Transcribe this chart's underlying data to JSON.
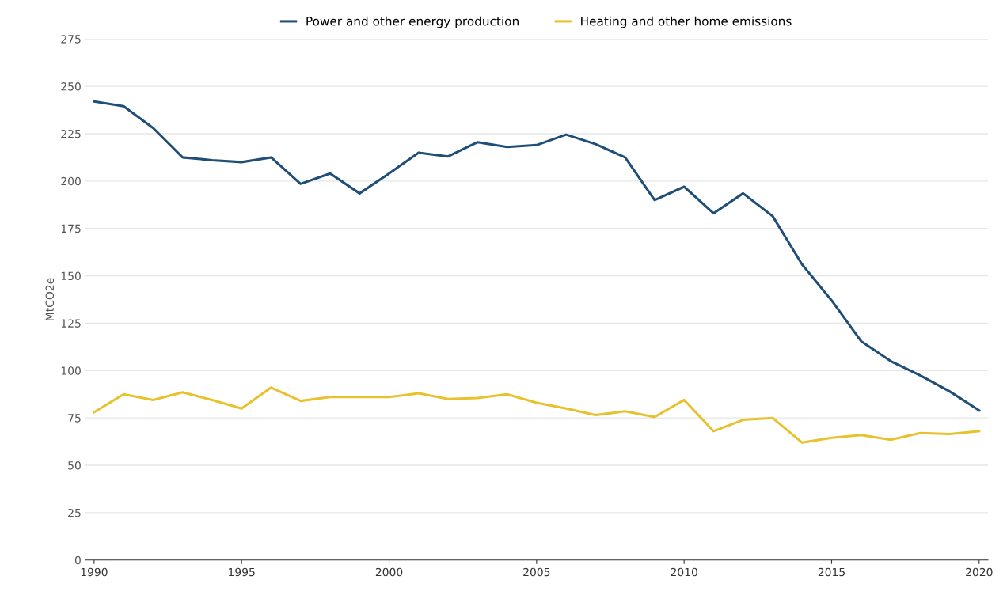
{
  "chart_data": {
    "type": "line",
    "ylabel": "MtCO2e",
    "x": [
      1990,
      1991,
      1992,
      1993,
      1994,
      1995,
      1996,
      1997,
      1998,
      1999,
      2000,
      2001,
      2002,
      2003,
      2004,
      2005,
      2006,
      2007,
      2008,
      2009,
      2010,
      2011,
      2012,
      2013,
      2014,
      2015,
      2016,
      2017,
      2018,
      2019,
      2020
    ],
    "series": [
      {
        "name": "Power and other energy production",
        "color": "#1f4e79",
        "values": [
          242,
          239.5,
          228,
          212.5,
          211,
          210,
          212.5,
          198.5,
          204,
          193.5,
          204,
          215,
          213,
          220.5,
          218,
          219,
          224.5,
          219.5,
          212.5,
          190,
          197,
          183,
          193.5,
          181.5,
          156,
          137,
          115.5,
          105,
          97.5,
          89,
          79
        ]
      },
      {
        "name": "Heating and other home emissions",
        "color": "#e8c22e",
        "values": [
          78,
          87.5,
          84.5,
          88.5,
          84.5,
          80,
          91,
          84,
          86,
          86,
          86,
          88,
          85,
          85.5,
          87.5,
          83,
          80,
          76.5,
          78.5,
          75.5,
          84.5,
          68,
          74,
          75,
          62,
          64.5,
          66,
          63.5,
          67,
          66.5,
          68
        ]
      }
    ],
    "xlim": [
      1989.7,
      2020.3
    ],
    "xticks": [
      1990,
      1995,
      2000,
      2005,
      2010,
      2015,
      2020
    ],
    "ylim": [
      0,
      275
    ],
    "yticks": [
      0,
      25,
      50,
      75,
      100,
      125,
      150,
      175,
      200,
      225,
      250,
      275
    ],
    "grid": "y",
    "legend": "top",
    "marker": "none",
    "line_style": "solid"
  }
}
